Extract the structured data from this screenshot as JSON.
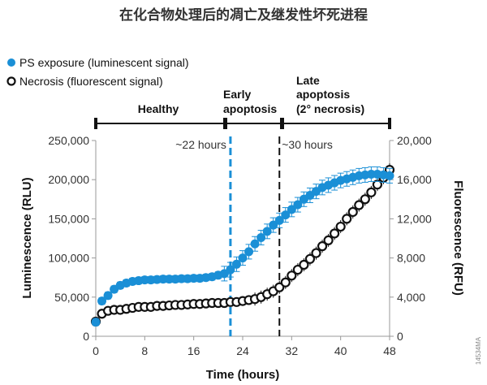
{
  "chart_data": {
    "type": "scatter",
    "title": "在化合物处理后的凋亡及继发性坏死进程",
    "xlabel": "Time (hours)",
    "ylabel": "Luminescence (RLU)",
    "y2label": "Fluorescence (RFU)",
    "xlim": [
      0,
      48
    ],
    "ylim": [
      0,
      250000
    ],
    "y2lim": [
      0,
      20000
    ],
    "xticks": [
      0,
      8,
      16,
      24,
      32,
      40,
      48
    ],
    "yticks": [
      0,
      50000,
      100000,
      150000,
      200000,
      250000
    ],
    "yticklabels": [
      "0",
      "50,000",
      "100,000",
      "150,000",
      "200,000",
      "250,000"
    ],
    "y2ticks": [
      0,
      4000,
      8000,
      12000,
      16000,
      20000
    ],
    "y2ticklabels": [
      "0",
      "4,000",
      "8,000",
      "12,000",
      "16,000",
      "20,000"
    ],
    "legend": [
      "PS exposure (luminescent signal)",
      "Necrosis (fluorescent signal)"
    ],
    "phases": [
      {
        "label": "Healthy",
        "start": 0,
        "end": 21
      },
      {
        "label": "Early apoptosis",
        "start": 21,
        "end": 30.5
      },
      {
        "label": "Late apoptosis (2° necrosis)",
        "start": 30.5,
        "end": 48
      }
    ],
    "phase_lines": [
      {
        "label": "Early",
        "label2": "apoptosis"
      },
      {
        "label": "Late",
        "label2": "apoptosis",
        "label3": "(2° necrosis)"
      }
    ],
    "annotations": [
      {
        "x": 22,
        "text": "~22 hours",
        "color": "#1a8fd6"
      },
      {
        "x": 30,
        "text": "~30 hours",
        "color": "#111111"
      }
    ],
    "code": "14534MA",
    "series": [
      {
        "name": "PS exposure (luminescent signal)",
        "axis": "left",
        "color": "#1a8fd6",
        "x": [
          0,
          1,
          2,
          3,
          4,
          5,
          6,
          7,
          8,
          9,
          10,
          11,
          12,
          13,
          14,
          15,
          16,
          17,
          18,
          19,
          20,
          21,
          22,
          23,
          24,
          25,
          26,
          27,
          28,
          29,
          30,
          31,
          32,
          33,
          34,
          35,
          36,
          37,
          38,
          39,
          40,
          41,
          42,
          43,
          44,
          45,
          46,
          47,
          48
        ],
        "y": [
          18000,
          45000,
          52000,
          60000,
          65000,
          68000,
          70000,
          71000,
          72000,
          72000,
          72500,
          73000,
          73000,
          73000,
          73500,
          73500,
          74000,
          74000,
          75000,
          76000,
          78000,
          80000,
          85000,
          92000,
          100000,
          108000,
          118000,
          126000,
          134000,
          142000,
          148000,
          155000,
          162000,
          168000,
          175000,
          180000,
          185000,
          190000,
          193000,
          196000,
          199000,
          201000,
          203000,
          205000,
          206000,
          207000,
          207000,
          206000,
          205000
        ]
      },
      {
        "name": "Necrosis (fluorescent signal)",
        "axis": "right",
        "color": "#111111",
        "x": [
          0,
          1,
          2,
          3,
          4,
          5,
          6,
          7,
          8,
          9,
          10,
          11,
          12,
          13,
          14,
          15,
          16,
          17,
          18,
          19,
          20,
          21,
          22,
          23,
          24,
          25,
          26,
          27,
          28,
          29,
          30,
          31,
          32,
          33,
          34,
          35,
          36,
          37,
          38,
          39,
          40,
          41,
          42,
          43,
          44,
          45,
          46,
          47,
          48
        ],
        "y": [
          1500,
          2300,
          2600,
          2700,
          2700,
          2800,
          2900,
          3000,
          3000,
          3000,
          3100,
          3100,
          3150,
          3200,
          3200,
          3250,
          3300,
          3300,
          3350,
          3400,
          3400,
          3400,
          3500,
          3500,
          3600,
          3700,
          3800,
          4000,
          4300,
          4600,
          5000,
          5500,
          6200,
          6800,
          7300,
          7900,
          8500,
          9200,
          9800,
          10500,
          11200,
          12000,
          12700,
          13400,
          14000,
          14700,
          15500,
          16200,
          17000
        ]
      }
    ]
  }
}
